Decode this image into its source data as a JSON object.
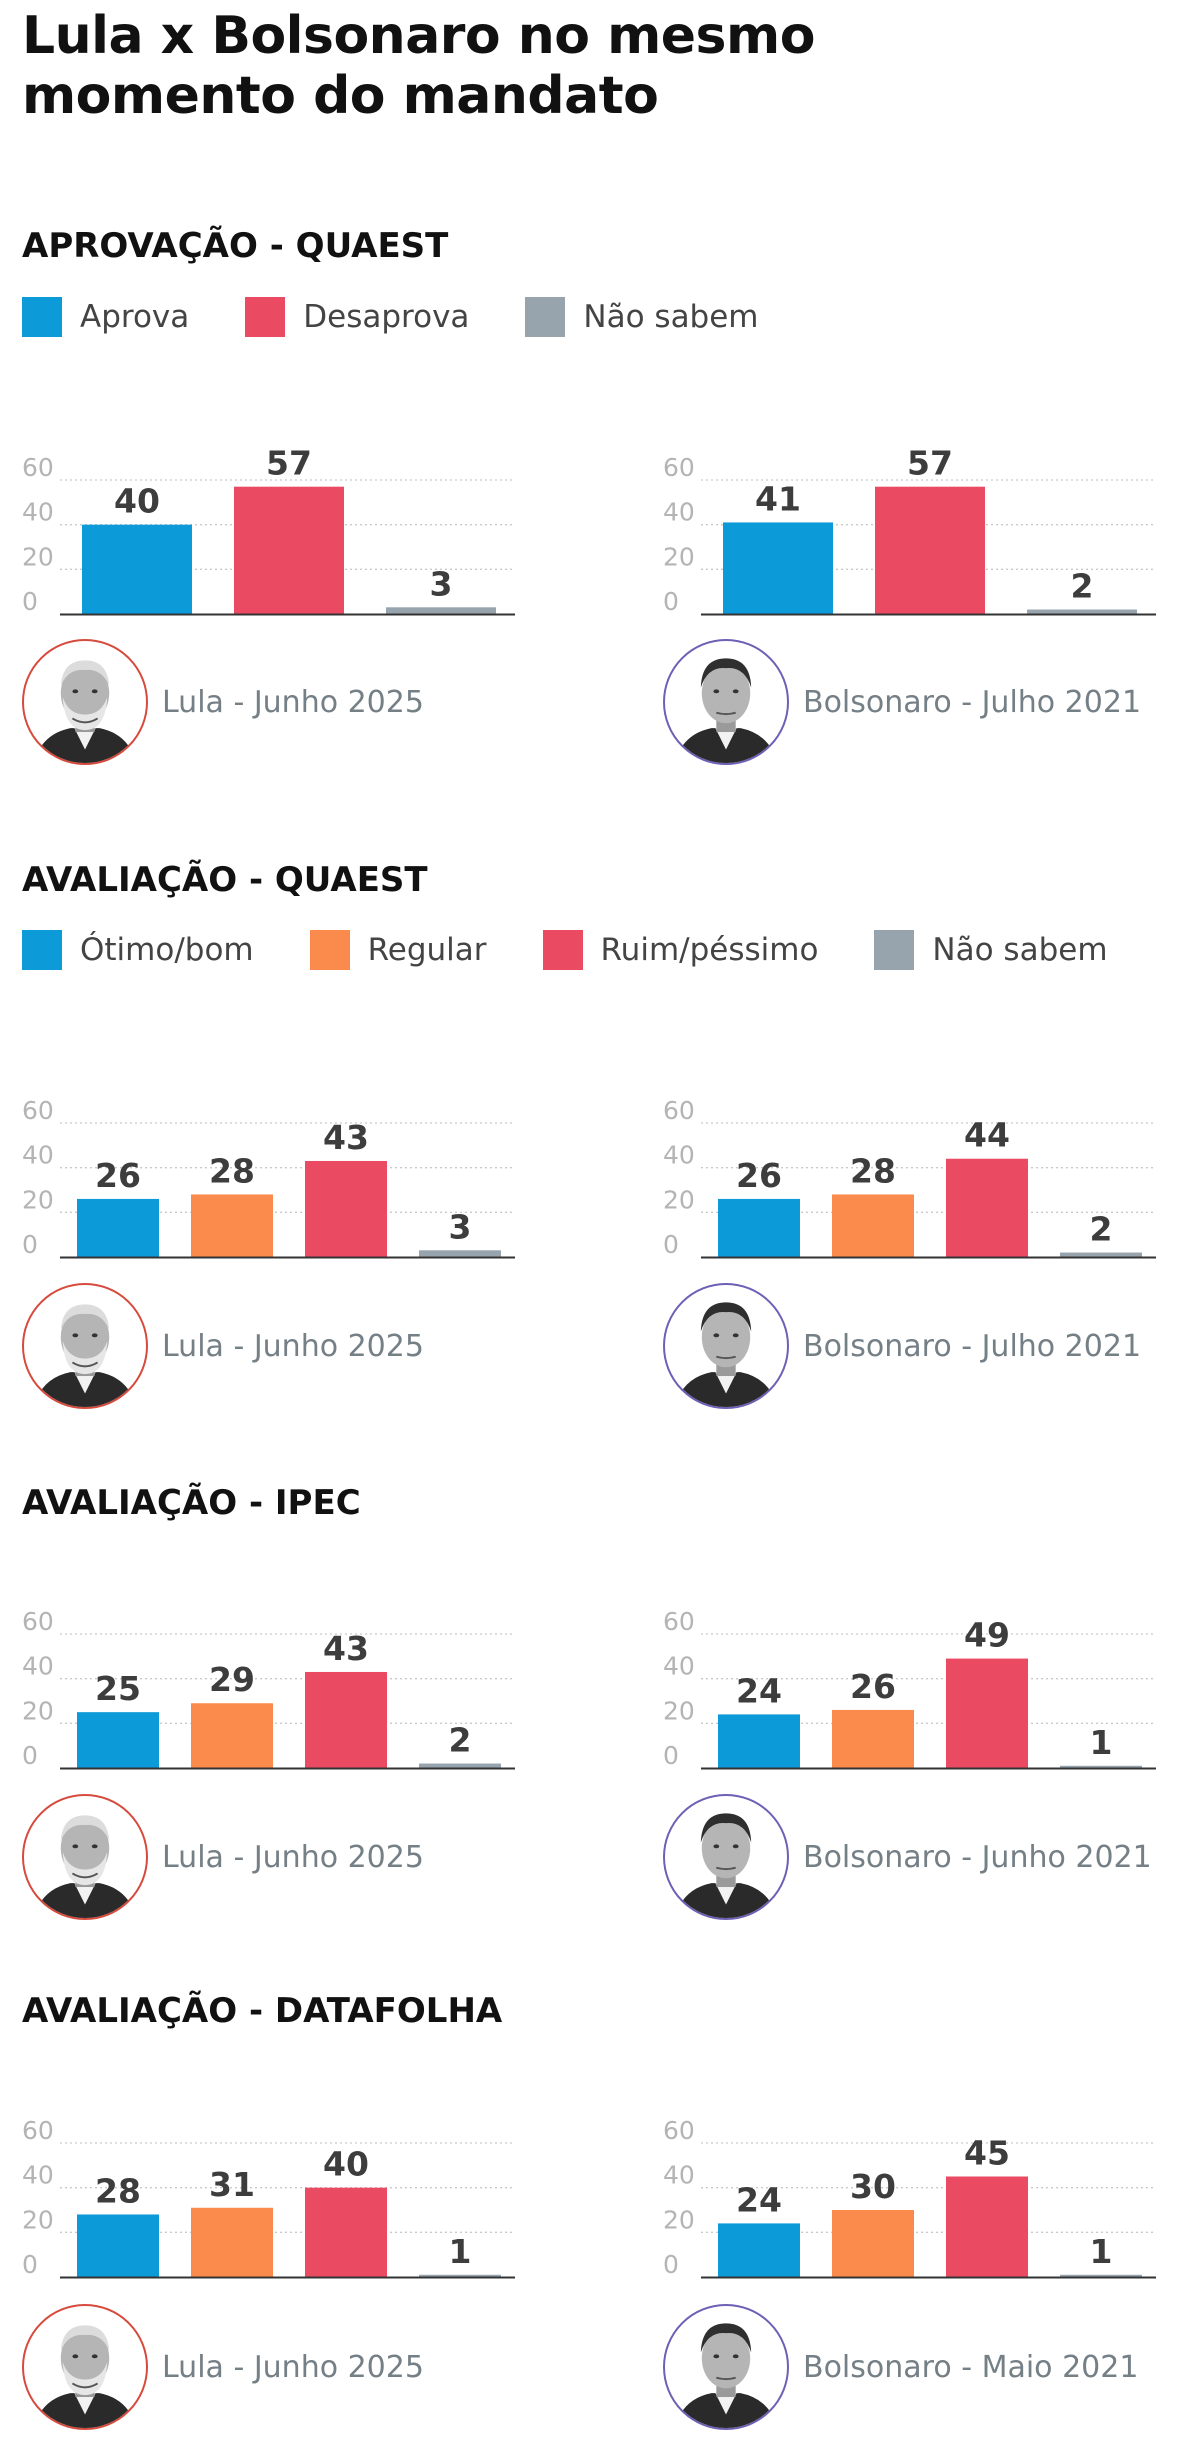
{
  "title_lines": [
    "Lula x Bolsonaro no mesmo",
    "momento do mandato"
  ],
  "colors": {
    "aprova": "#0d9ad9",
    "desaprova": "#ea4b63",
    "nao_sabem": "#98a4ad",
    "otimo_bom": "#0d9ad9",
    "regular": "#fb8a4d",
    "ruim_pessimo": "#ea4b63",
    "axis_text": "#b4b4b4",
    "value_text": "#3d3d3d",
    "lula_ring": "#d64b3d",
    "bolsonaro_ring": "#6f5fb5"
  },
  "sections": [
    {
      "title": "APROVAÇÃO - QUAEST",
      "legend": [
        {
          "label": "Aprova",
          "color": "#0d9ad9"
        },
        {
          "label": "Desaprova",
          "color": "#ea4b63"
        },
        {
          "label": "Não sabem",
          "color": "#98a4ad"
        }
      ],
      "panels": [
        {
          "caption": "Lula - Junho 2025",
          "avatar": "lula-portrait-icon"
        },
        {
          "caption": "Bolsonaro - Julho 2021",
          "avatar": "bolsonaro-portrait-icon"
        }
      ]
    },
    {
      "title": "AVALIAÇÃO - QUAEST",
      "legend": [
        {
          "label": "Ótimo/bom",
          "color": "#0d9ad9"
        },
        {
          "label": "Regular",
          "color": "#fb8a4d"
        },
        {
          "label": "Ruim/péssimo",
          "color": "#ea4b63"
        },
        {
          "label": "Não sabem",
          "color": "#98a4ad"
        }
      ],
      "panels": [
        {
          "caption": "Lula - Junho 2025",
          "avatar": "lula-portrait-icon"
        },
        {
          "caption": "Bolsonaro - Julho 2021",
          "avatar": "bolsonaro-portrait-icon"
        }
      ]
    },
    {
      "title": "AVALIAÇÃO - IPEC",
      "panels": [
        {
          "caption": "Lula - Junho 2025",
          "avatar": "lula-portrait-icon"
        },
        {
          "caption": "Bolsonaro - Junho 2021",
          "avatar": "bolsonaro-portrait-icon"
        }
      ]
    },
    {
      "title": "AVALIAÇÃO - DATAFOLHA",
      "panels": [
        {
          "caption": "Lula - Junho 2025",
          "avatar": "lula-portrait-icon"
        },
        {
          "caption": "Bolsonaro - Maio 2021",
          "avatar": "bolsonaro-portrait-icon"
        }
      ]
    }
  ],
  "chart_data": [
    {
      "type": "bar",
      "title": "APROVAÇÃO - QUAEST",
      "caption": "Lula - Junho 2025",
      "categories": [
        "Aprova",
        "Desaprova",
        "Não sabem"
      ],
      "values": [
        40,
        57,
        3
      ],
      "colors": [
        "#0d9ad9",
        "#ea4b63",
        "#98a4ad"
      ],
      "ylim": [
        0,
        60
      ],
      "yticks": [
        0,
        20,
        40,
        60
      ],
      "grid": true
    },
    {
      "type": "bar",
      "title": "APROVAÇÃO - QUAEST",
      "caption": "Bolsonaro - Julho 2021",
      "categories": [
        "Aprova",
        "Desaprova",
        "Não sabem"
      ],
      "values": [
        41,
        57,
        2
      ],
      "colors": [
        "#0d9ad9",
        "#ea4b63",
        "#98a4ad"
      ],
      "ylim": [
        0,
        60
      ],
      "yticks": [
        0,
        20,
        40,
        60
      ],
      "grid": true
    },
    {
      "type": "bar",
      "title": "AVALIAÇÃO - QUAEST",
      "caption": "Lula - Junho 2025",
      "categories": [
        "Ótimo/bom",
        "Regular",
        "Ruim/péssimo",
        "Não sabem"
      ],
      "values": [
        26,
        28,
        43,
        3
      ],
      "colors": [
        "#0d9ad9",
        "#fb8a4d",
        "#ea4b63",
        "#98a4ad"
      ],
      "ylim": [
        0,
        60
      ],
      "yticks": [
        0,
        20,
        40,
        60
      ],
      "grid": true
    },
    {
      "type": "bar",
      "title": "AVALIAÇÃO - QUAEST",
      "caption": "Bolsonaro - Julho 2021",
      "categories": [
        "Ótimo/bom",
        "Regular",
        "Ruim/péssimo",
        "Não sabem"
      ],
      "values": [
        26,
        28,
        44,
        2
      ],
      "colors": [
        "#0d9ad9",
        "#fb8a4d",
        "#ea4b63",
        "#98a4ad"
      ],
      "ylim": [
        0,
        60
      ],
      "yticks": [
        0,
        20,
        40,
        60
      ],
      "grid": true
    },
    {
      "type": "bar",
      "title": "AVALIAÇÃO - IPEC",
      "caption": "Lula - Junho 2025",
      "categories": [
        "Ótimo/bom",
        "Regular",
        "Ruim/péssimo",
        "Não sabem"
      ],
      "values": [
        25,
        29,
        43,
        2
      ],
      "colors": [
        "#0d9ad9",
        "#fb8a4d",
        "#ea4b63",
        "#98a4ad"
      ],
      "ylim": [
        0,
        60
      ],
      "yticks": [
        0,
        20,
        40,
        60
      ],
      "grid": true
    },
    {
      "type": "bar",
      "title": "AVALIAÇÃO - IPEC",
      "caption": "Bolsonaro - Junho 2021",
      "categories": [
        "Ótimo/bom",
        "Regular",
        "Ruim/péssimo",
        "Não sabem"
      ],
      "values": [
        24,
        26,
        49,
        1
      ],
      "colors": [
        "#0d9ad9",
        "#fb8a4d",
        "#ea4b63",
        "#98a4ad"
      ],
      "ylim": [
        0,
        60
      ],
      "yticks": [
        0,
        20,
        40,
        60
      ],
      "grid": true
    },
    {
      "type": "bar",
      "title": "AVALIAÇÃO - DATAFOLHA",
      "caption": "Lula - Junho 2025",
      "categories": [
        "Ótimo/bom",
        "Regular",
        "Ruim/péssimo",
        "Não sabem"
      ],
      "values": [
        28,
        31,
        40,
        1
      ],
      "colors": [
        "#0d9ad9",
        "#fb8a4d",
        "#ea4b63",
        "#98a4ad"
      ],
      "ylim": [
        0,
        60
      ],
      "yticks": [
        0,
        20,
        40,
        60
      ],
      "grid": true
    },
    {
      "type": "bar",
      "title": "AVALIAÇÃO - DATAFOLHA",
      "caption": "Bolsonaro - Maio 2021",
      "categories": [
        "Ótimo/bom",
        "Regular",
        "Ruim/péssimo",
        "Não sabem"
      ],
      "values": [
        24,
        30,
        45,
        1
      ],
      "colors": [
        "#0d9ad9",
        "#fb8a4d",
        "#ea4b63",
        "#98a4ad"
      ],
      "ylim": [
        0,
        60
      ],
      "yticks": [
        0,
        20,
        40,
        60
      ],
      "grid": true
    }
  ]
}
